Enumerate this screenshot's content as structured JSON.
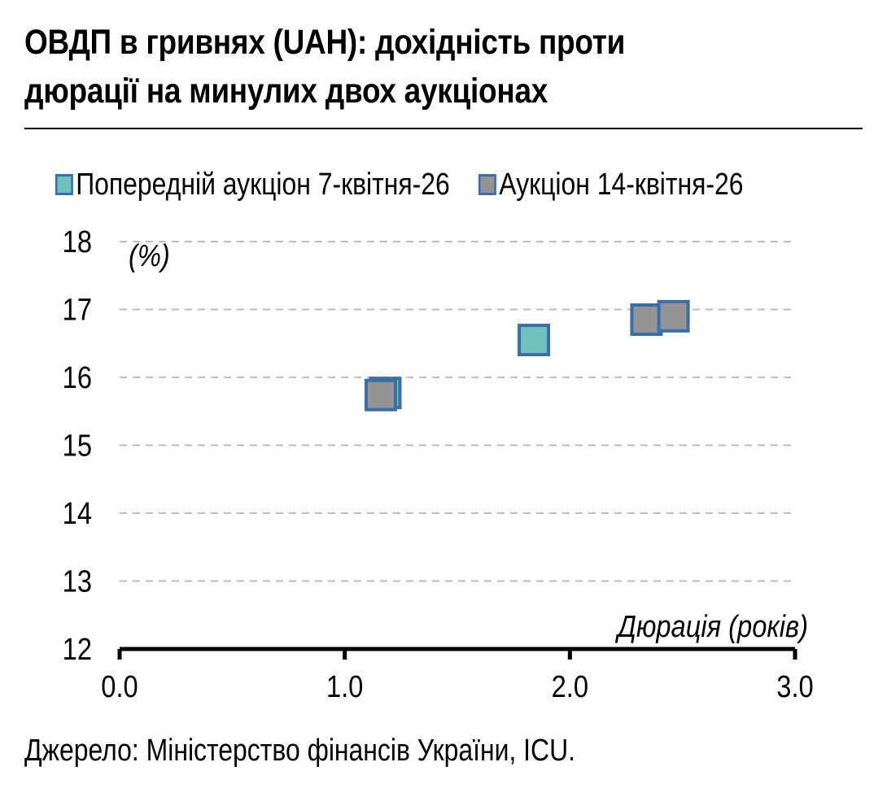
{
  "chart_data": {
    "type": "scatter",
    "title": "ОВДП в гривнях (UAH): дохідність проти\nдюрації на минулих двох аукціонах",
    "ylabel": "(%)",
    "xlabel": "Дюрація (років)",
    "xlim": [
      0,
      3
    ],
    "ylim": [
      12,
      18
    ],
    "x_ticks": [
      "0.0",
      "1.0",
      "2.0",
      "3.0"
    ],
    "y_ticks": [
      "12",
      "13",
      "14",
      "15",
      "16",
      "17",
      "18"
    ],
    "grid": true,
    "legend_position": "top",
    "series": [
      {
        "name": "Попередній аукціон 7-квітня-26",
        "color": "#70C0BC",
        "edge_color": "#3A6EA8",
        "marker": "square",
        "points": [
          {
            "x": 1.18,
            "y": 15.77
          },
          {
            "x": 1.84,
            "y": 16.55
          }
        ]
      },
      {
        "name": "Аукціон 14-квітня-26",
        "color": "#949494",
        "edge_color": "#3A6EA8",
        "marker": "square",
        "points": [
          {
            "x": 1.16,
            "y": 15.74
          },
          {
            "x": 2.34,
            "y": 16.85
          },
          {
            "x": 2.46,
            "y": 16.9
          }
        ]
      }
    ],
    "source": "Джерело: Міністерство фінансів України, ICU."
  }
}
